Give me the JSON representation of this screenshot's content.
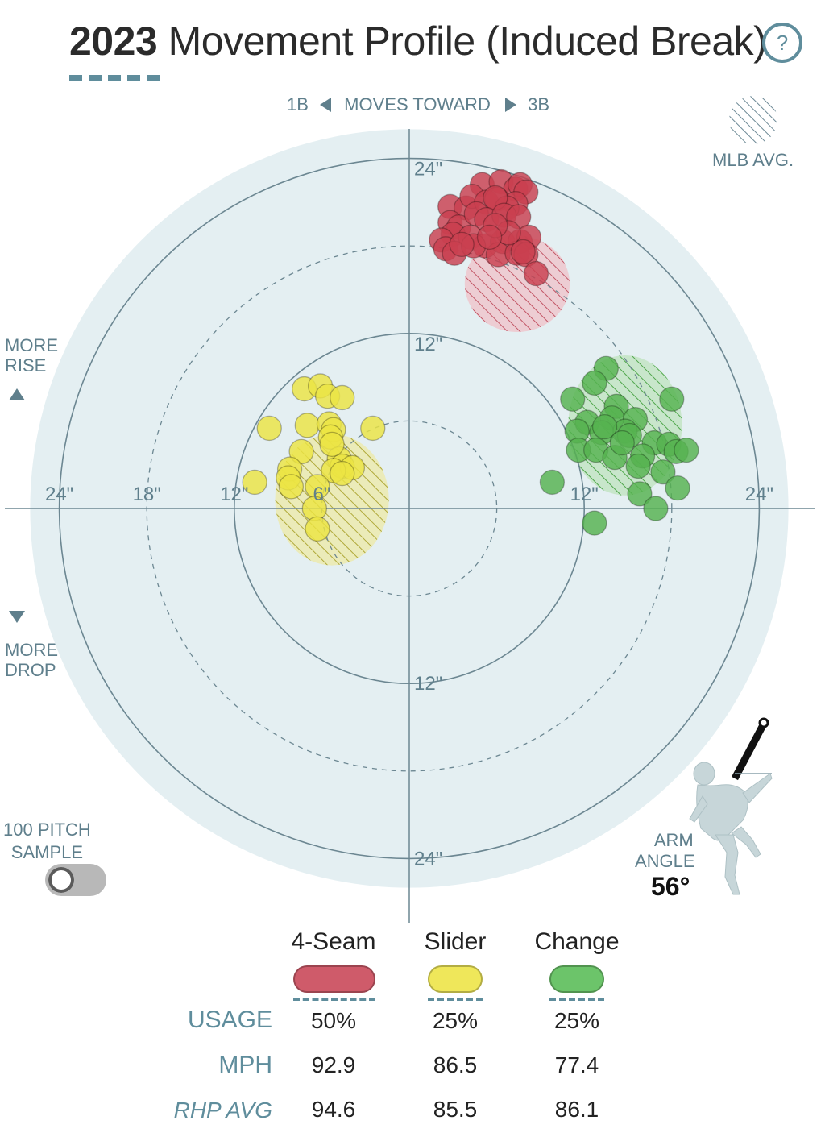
{
  "header": {
    "year": "2023",
    "title": "Movement Profile (Induced Break)",
    "help_label": "?"
  },
  "direction": {
    "left_base": "1B",
    "center": "MOVES TOWARD",
    "right_base": "3B"
  },
  "legend": {
    "mlb_avg": "MLB AVG."
  },
  "side_labels": {
    "more_rise_1": "MORE",
    "more_rise_2": "RISE",
    "more_drop_1": "MORE",
    "more_drop_2": "DROP"
  },
  "sample_toggle": {
    "line1": "100 PITCH",
    "line2": "SAMPLE",
    "on": false
  },
  "arm_angle": {
    "label1": "ARM",
    "label2": "ANGLE",
    "value": "56°",
    "degrees": 56
  },
  "pitches": [
    {
      "name": "4-Seam",
      "color": "#cf5b6a",
      "usage": "50%",
      "mph": "92.9",
      "rhp_avg": "94.6"
    },
    {
      "name": "Slider",
      "color": "#efe75a",
      "usage": "25%",
      "mph": "86.5",
      "rhp_avg": "85.5"
    },
    {
      "name": "Change",
      "color": "#6cc46a",
      "usage": "25%",
      "mph": "77.4",
      "rhp_avg": "86.1"
    }
  ],
  "table_rows": {
    "usage": "USAGE",
    "mph": "MPH",
    "rhp_avg": "RHP AVG"
  },
  "chart_data": {
    "type": "scatter",
    "title": "Movement Profile (Induced Break)",
    "x_axis": "horizontal break (in), negative toward 1B, positive toward 3B",
    "y_axis": "induced vertical break (in), positive = more rise",
    "rings": [
      6,
      12,
      18,
      24
    ],
    "ring_labels": {
      "x": [
        {
          "x": -24,
          "text": "24\""
        },
        {
          "x": -18,
          "text": "18\""
        },
        {
          "x": -12,
          "text": "12\""
        },
        {
          "x": -6,
          "text": "6\""
        },
        {
          "x": 12,
          "text": "12\""
        },
        {
          "x": 24,
          "text": "24\""
        }
      ],
      "y": [
        {
          "y": 24,
          "text": "24\""
        },
        {
          "y": 12,
          "text": "12\""
        },
        {
          "y": -12,
          "text": "12\""
        },
        {
          "y": -24,
          "text": "24\""
        }
      ]
    },
    "xlim": [
      -24,
      24
    ],
    "ylim": [
      -24,
      24
    ],
    "series": [
      {
        "name": "4-Seam",
        "color": "#c9404f",
        "mlb_avg": {
          "x": 7.4,
          "y": 15.4,
          "rx": 3.6,
          "ry": 3.3
        },
        "points": [
          [
            5.0,
            22.2
          ],
          [
            6.3,
            22.4
          ],
          [
            7.3,
            21.9
          ],
          [
            7.6,
            22.2
          ],
          [
            8.0,
            21.7
          ],
          [
            2.8,
            20.7
          ],
          [
            3.9,
            20.6
          ],
          [
            4.3,
            21.4
          ],
          [
            5.3,
            21.0
          ],
          [
            6.0,
            21.2
          ],
          [
            7.3,
            20.9
          ],
          [
            6.7,
            20.6
          ],
          [
            5.9,
            21.3
          ],
          [
            2.8,
            19.6
          ],
          [
            3.4,
            19.3
          ],
          [
            4.6,
            20.2
          ],
          [
            5.3,
            19.8
          ],
          [
            6.5,
            20.1
          ],
          [
            7.5,
            20.0
          ],
          [
            3.0,
            18.8
          ],
          [
            4.2,
            18.6
          ],
          [
            5.2,
            18.0
          ],
          [
            6.4,
            18.3
          ],
          [
            7.6,
            18.3
          ],
          [
            8.2,
            18.6
          ],
          [
            2.2,
            18.4
          ],
          [
            2.5,
            17.8
          ],
          [
            3.1,
            17.5
          ],
          [
            6.1,
            17.4
          ],
          [
            7.4,
            17.5
          ],
          [
            8.0,
            17.4
          ],
          [
            7.8,
            17.6
          ],
          [
            6.8,
            18.9
          ],
          [
            5.9,
            19.4
          ],
          [
            8.7,
            16.1
          ],
          [
            4.4,
            18.0
          ],
          [
            5.5,
            18.6
          ],
          [
            3.6,
            18.1
          ]
        ]
      },
      {
        "name": "Slider",
        "color": "#ece443",
        "mlb_avg": {
          "x": -5.3,
          "y": 0.6,
          "rx": 3.9,
          "ry": 4.5
        },
        "points": [
          [
            -7.2,
            8.2
          ],
          [
            -6.1,
            8.4
          ],
          [
            -5.6,
            7.7
          ],
          [
            -4.6,
            7.6
          ],
          [
            -9.6,
            5.5
          ],
          [
            -7.0,
            5.7
          ],
          [
            -5.5,
            5.8
          ],
          [
            -5.2,
            5.4
          ],
          [
            -5.4,
            4.9
          ],
          [
            -2.5,
            5.5
          ],
          [
            -7.4,
            3.9
          ],
          [
            -4.8,
            3.4
          ],
          [
            -4.6,
            2.9
          ],
          [
            -3.9,
            2.8
          ],
          [
            -8.2,
            2.7
          ],
          [
            -8.3,
            2.1
          ],
          [
            -5.2,
            2.6
          ],
          [
            -4.6,
            2.4
          ],
          [
            -10.6,
            1.8
          ],
          [
            -8.1,
            1.5
          ],
          [
            -6.3,
            1.5
          ],
          [
            -6.5,
            0.0
          ],
          [
            -6.3,
            -1.4
          ],
          [
            -5.3,
            4.4
          ]
        ]
      },
      {
        "name": "Change",
        "color": "#55b24f",
        "mlb_avg": {
          "x": 14.8,
          "y": 5.7,
          "rx": 3.9,
          "ry": 4.8
        },
        "points": [
          [
            13.5,
            9.6
          ],
          [
            12.7,
            8.6
          ],
          [
            11.2,
            7.5
          ],
          [
            14.2,
            7.0
          ],
          [
            18.0,
            7.5
          ],
          [
            12.2,
            5.9
          ],
          [
            13.9,
            6.2
          ],
          [
            15.5,
            6.1
          ],
          [
            11.5,
            5.3
          ],
          [
            13.2,
            5.2
          ],
          [
            14.8,
            5.3
          ],
          [
            15.1,
            5.0
          ],
          [
            16.8,
            4.5
          ],
          [
            17.8,
            4.4
          ],
          [
            18.3,
            3.9
          ],
          [
            11.6,
            4.0
          ],
          [
            12.8,
            4.0
          ],
          [
            14.1,
            3.5
          ],
          [
            16.0,
            3.6
          ],
          [
            19.0,
            4.0
          ],
          [
            15.7,
            2.9
          ],
          [
            9.8,
            1.8
          ],
          [
            17.4,
            2.5
          ],
          [
            18.4,
            1.4
          ],
          [
            15.8,
            1.0
          ],
          [
            16.9,
            0.0
          ],
          [
            12.7,
            -1.0
          ],
          [
            13.4,
            5.6
          ],
          [
            14.6,
            4.5
          ]
        ]
      }
    ]
  }
}
